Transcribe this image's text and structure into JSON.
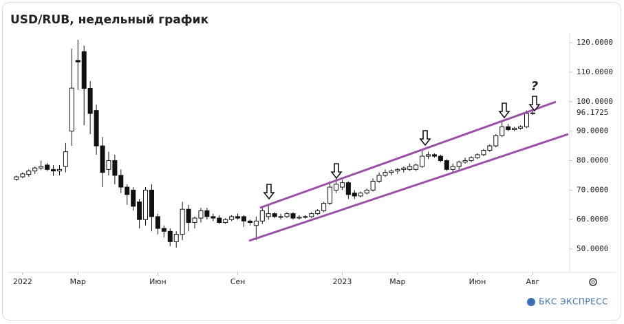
{
  "chart_data": {
    "type": "candlestick",
    "title": "USD/RUB, недельный график",
    "brand": "БКС ЭКСПРЕСС",
    "annotation": "?",
    "last_value": 96.1725,
    "up_color": "#ffffff",
    "down_color": "#111111",
    "channel_color": "#9b4fa8",
    "ylim": [
      42.3,
      123.3
    ],
    "yticks": [
      {
        "value": 50,
        "label": "50.0000"
      },
      {
        "value": 60,
        "label": "60.0000"
      },
      {
        "value": 70,
        "label": "70.0000"
      },
      {
        "value": 80,
        "label": "80.0000"
      },
      {
        "value": 90,
        "label": "90.0000"
      },
      {
        "value": 100,
        "label": "100.0000"
      },
      {
        "value": 110,
        "label": "110.0000"
      },
      {
        "value": 120,
        "label": "120.0000"
      }
    ],
    "xlim": [
      -1,
      90
    ],
    "xticks": [
      {
        "value": 1,
        "label": "2022"
      },
      {
        "value": 10,
        "label": "Мар"
      },
      {
        "value": 23,
        "label": "Июн"
      },
      {
        "value": 36,
        "label": "Сен"
      },
      {
        "value": 53,
        "label": "2023"
      },
      {
        "value": 62,
        "label": "Мар"
      },
      {
        "value": 75,
        "label": "Июн"
      },
      {
        "value": 84,
        "label": "Авг"
      }
    ],
    "ohlc": [
      [
        73.7,
        74.9,
        73.2,
        74.5
      ],
      [
        74.5,
        76,
        74,
        75.5
      ],
      [
        75.3,
        77,
        74.5,
        76.5
      ],
      [
        76.5,
        78,
        75.5,
        77.5
      ],
      [
        77.5,
        80,
        76.8,
        78
      ],
      [
        78.5,
        79.2,
        76.5,
        77
      ],
      [
        77,
        78.5,
        74.8,
        76.5
      ],
      [
        76.5,
        78.5,
        75,
        77
      ],
      [
        78,
        86,
        76,
        83
      ],
      [
        90,
        118,
        85,
        104.6
      ],
      [
        114,
        121,
        104,
        113.5
      ],
      [
        117,
        119,
        92,
        104.5
      ],
      [
        104.5,
        107,
        89,
        96
      ],
      [
        97,
        99,
        82,
        85
      ],
      [
        85,
        88,
        71,
        76
      ],
      [
        77,
        83,
        75,
        80
      ],
      [
        80,
        82,
        72,
        75
      ],
      [
        75,
        77,
        69,
        71
      ],
      [
        71,
        72,
        65,
        68.5
      ],
      [
        70,
        71,
        63,
        64.5
      ],
      [
        66,
        67,
        57,
        60
      ],
      [
        60,
        71,
        58,
        70
      ],
      [
        70,
        72,
        56,
        61
      ],
      [
        61,
        62,
        55,
        57
      ],
      [
        57,
        58,
        54,
        56
      ],
      [
        56,
        57,
        51,
        52.5
      ],
      [
        52.5,
        56,
        50.5,
        55
      ],
      [
        55,
        66,
        53,
        63.5
      ],
      [
        63.5,
        65,
        56,
        59
      ],
      [
        59,
        61,
        57,
        60.5
      ],
      [
        60.5,
        64,
        59,
        63
      ],
      [
        63,
        64,
        60,
        61
      ],
      [
        61,
        62,
        59.5,
        60.5
      ],
      [
        60.5,
        61.5,
        58.5,
        59
      ],
      [
        59,
        60.5,
        58.5,
        60
      ],
      [
        60,
        61.5,
        59.5,
        61
      ],
      [
        61,
        62,
        60,
        60.5
      ],
      [
        61,
        61.5,
        57.5,
        59.5
      ],
      [
        59.5,
        60,
        58,
        59
      ],
      [
        58,
        61,
        53,
        59.5
      ],
      [
        59.5,
        64,
        58.5,
        63
      ],
      [
        61,
        65,
        60,
        62
      ],
      [
        62,
        62.5,
        60.5,
        61
      ],
      [
        61,
        62,
        60,
        61
      ],
      [
        61,
        62.5,
        60.5,
        62
      ],
      [
        62,
        62.5,
        60,
        60.5
      ],
      [
        60.5,
        61.5,
        60,
        60.8
      ],
      [
        60.8,
        61.5,
        60.3,
        61
      ],
      [
        61,
        62.5,
        60.5,
        62
      ],
      [
        62,
        63.5,
        61.5,
        63
      ],
      [
        63,
        66,
        62.5,
        65.5
      ],
      [
        65.5,
        73,
        65,
        71
      ],
      [
        70,
        74,
        69,
        72
      ],
      [
        71,
        73.5,
        70,
        72.5
      ],
      [
        72.5,
        73,
        67,
        68.5
      ],
      [
        69,
        70,
        67,
        68
      ],
      [
        68,
        69.5,
        67.5,
        69
      ],
      [
        69,
        70.5,
        68.5,
        70
      ],
      [
        70,
        74,
        69.5,
        73
      ],
      [
        73,
        76,
        72.5,
        75
      ],
      [
        75,
        77,
        74.5,
        76
      ],
      [
        76,
        77,
        75,
        76.5
      ],
      [
        76.5,
        77.5,
        75.5,
        77
      ],
      [
        77,
        78,
        76,
        77.5
      ],
      [
        77,
        79,
        76.5,
        78
      ],
      [
        77,
        79,
        76.5,
        78.5
      ],
      [
        78,
        84,
        77.5,
        81.5
      ],
      [
        81.5,
        83,
        80.5,
        82
      ],
      [
        82,
        82.5,
        81,
        81.5
      ],
      [
        81.5,
        82,
        79.5,
        80
      ],
      [
        80,
        80.5,
        76.5,
        77
      ],
      [
        77,
        79,
        76,
        78
      ],
      [
        78,
        80,
        77,
        79.5
      ],
      [
        79.5,
        81,
        79,
        80
      ],
      [
        80,
        81.5,
        79.5,
        81
      ],
      [
        81,
        82.5,
        80.5,
        82
      ],
      [
        82,
        84,
        81.5,
        83.5
      ],
      [
        83.5,
        85.5,
        83,
        85
      ],
      [
        85,
        89,
        84.5,
        88.5
      ],
      [
        88.5,
        93,
        88,
        91.5
      ],
      [
        91.5,
        92.5,
        90,
        90.5
      ],
      [
        90.5,
        91.5,
        90,
        91
      ],
      [
        91,
        92,
        90.5,
        91.5
      ],
      [
        91.5,
        97,
        91,
        96
      ],
      [
        96,
        97,
        95.5,
        96.1725
      ]
    ]
  }
}
